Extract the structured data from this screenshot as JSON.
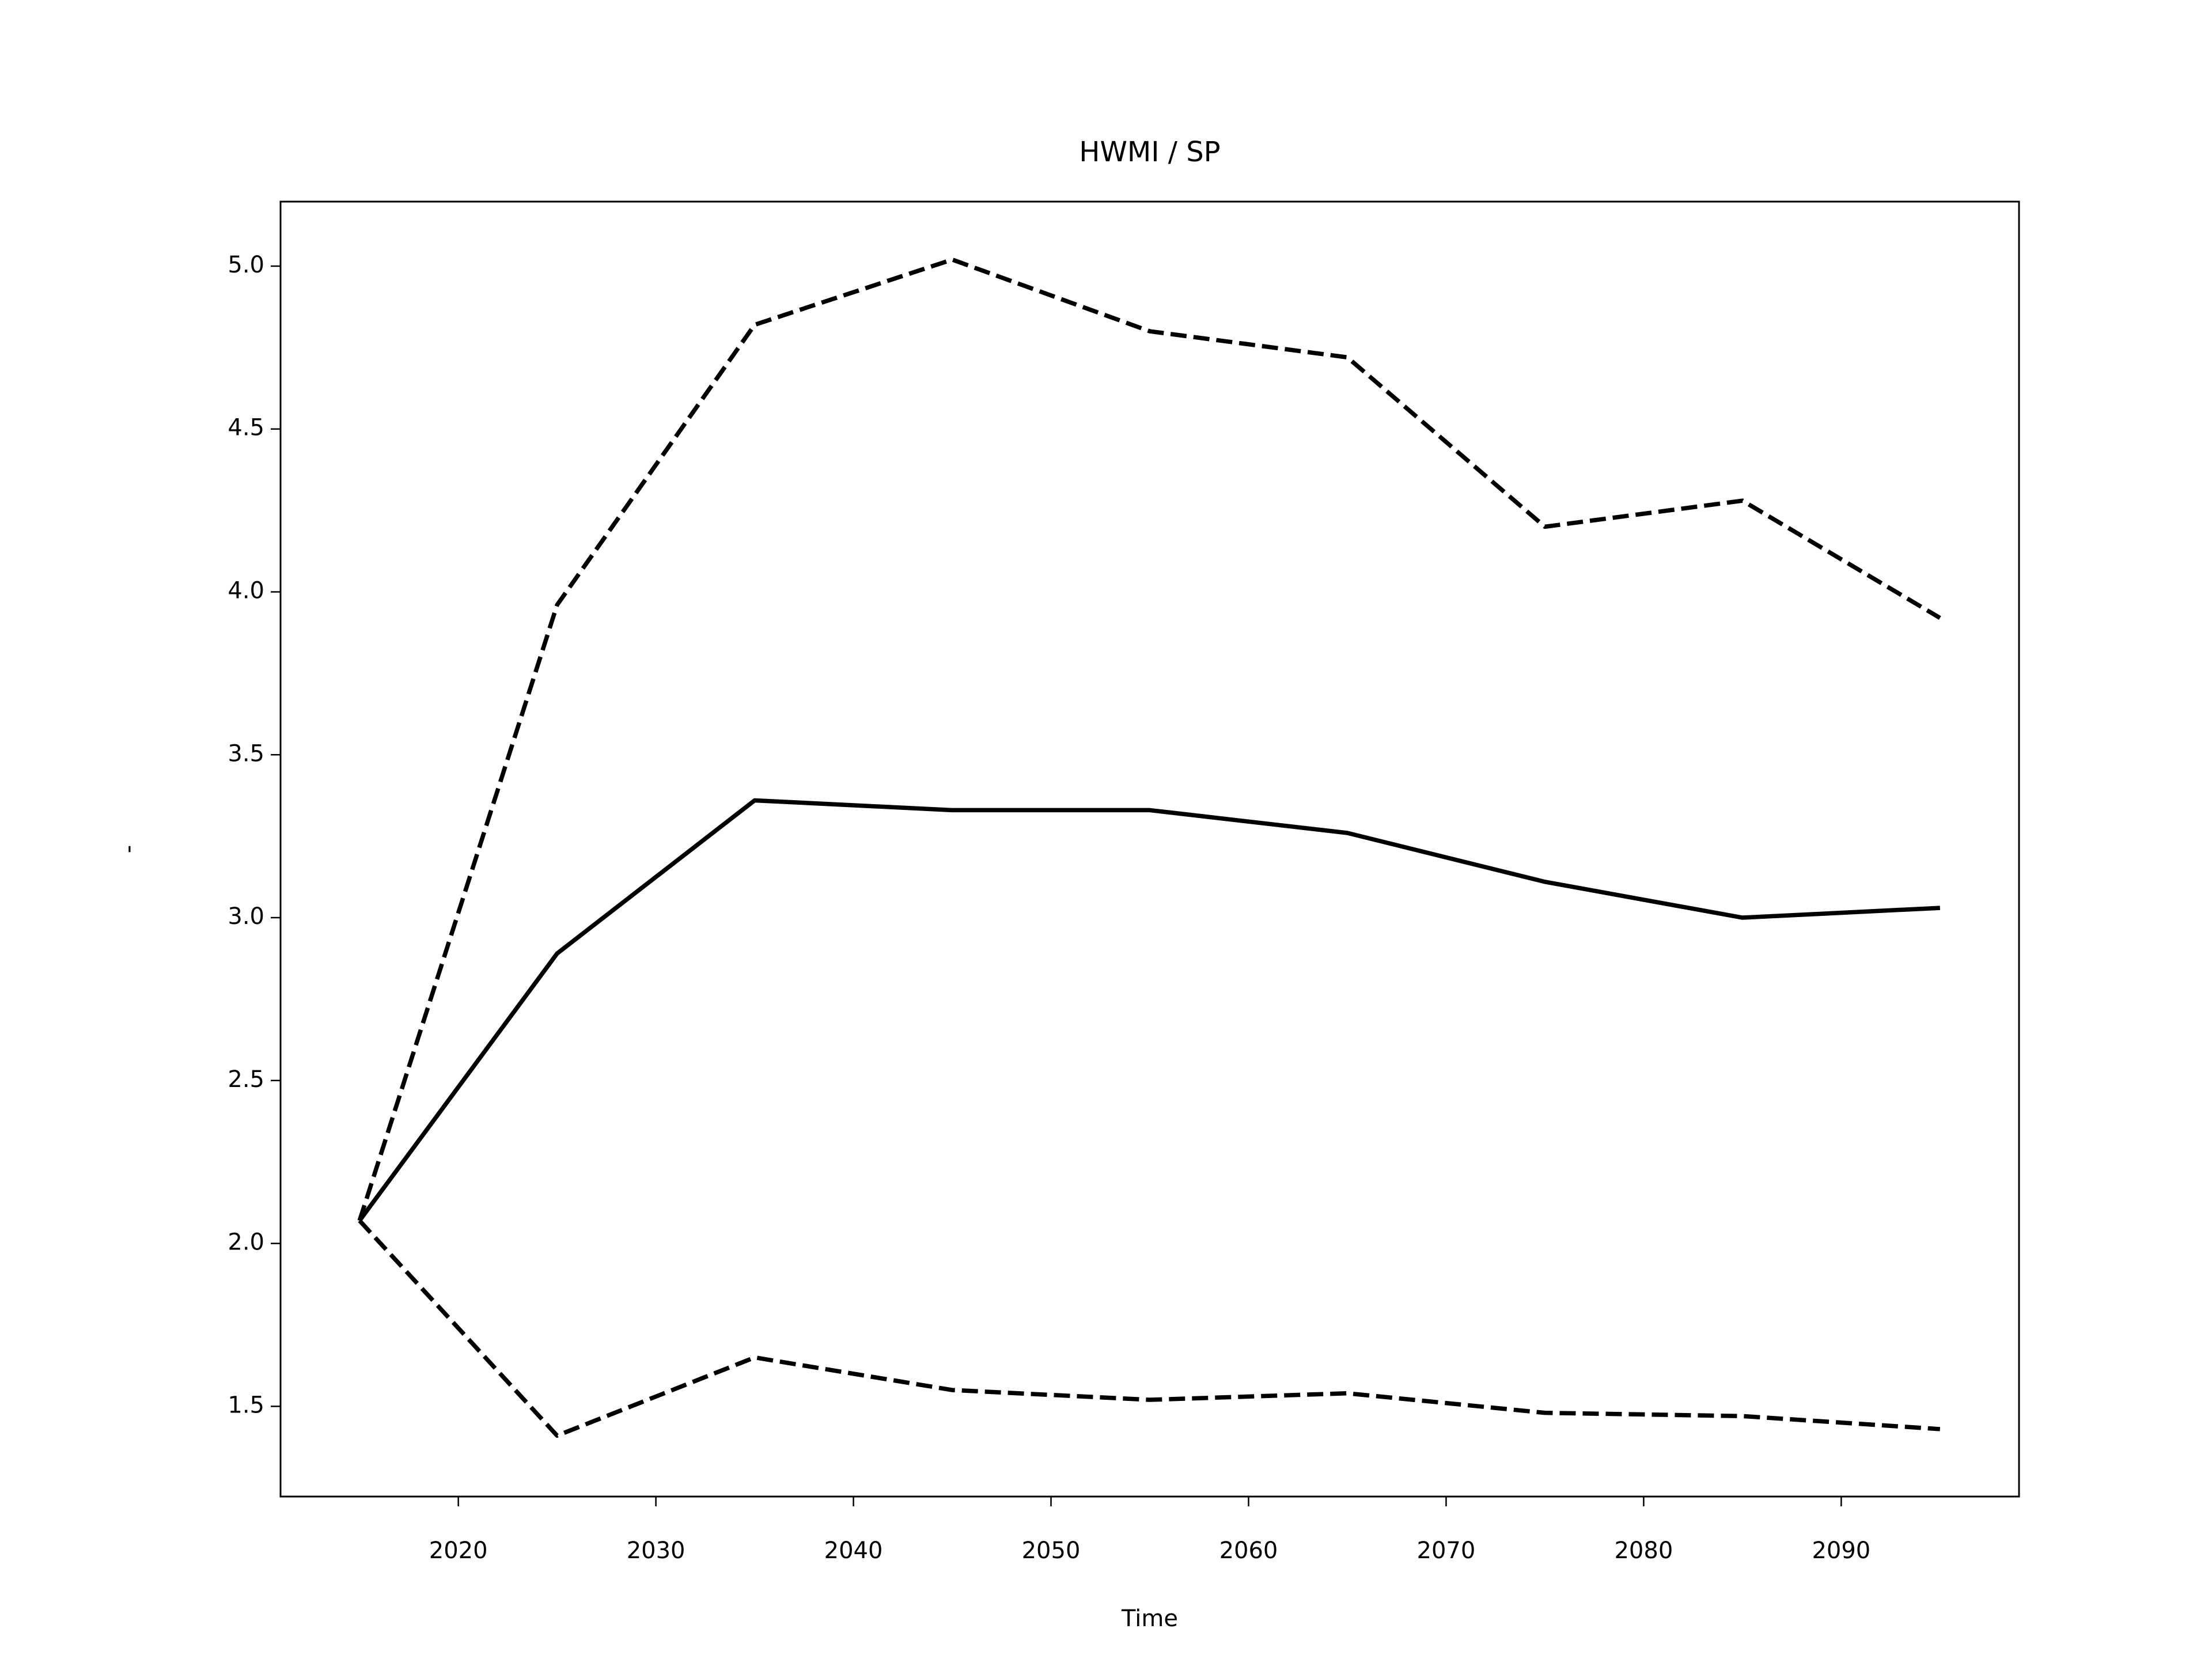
{
  "chart_data": {
    "type": "line",
    "title": "HWMI / SP",
    "x_label": "Time",
    "y_label": "-",
    "x": [
      2015,
      2025,
      2035,
      2045,
      2055,
      2065,
      2075,
      2085,
      2095
    ],
    "series": [
      {
        "color": "#000000",
        "linestyle": "solid",
        "values": [
          2.07,
          2.89,
          3.36,
          3.33,
          3.33,
          3.26,
          3.11,
          3.0,
          3.03
        ]
      },
      {
        "color": "#000000",
        "linestyle": "dashed",
        "values": [
          2.07,
          3.96,
          4.82,
          5.02,
          4.8,
          4.72,
          4.2,
          4.28,
          3.92
        ]
      },
      {
        "color": "#000000",
        "linestyle": "dashed",
        "values": [
          2.07,
          1.41,
          1.65,
          1.55,
          1.52,
          1.54,
          1.48,
          1.47,
          1.43
        ]
      }
    ],
    "xlim": [
      2011,
      2099
    ],
    "xticks": [
      2020,
      2030,
      2040,
      2050,
      2060,
      2070,
      2080,
      2090
    ],
    "ylim": [
      1.223,
      5.198
    ],
    "yticks": [
      1.5,
      {
        "value": 2,
        "label": "2.0"
      },
      2.5,
      {
        "value": 3,
        "label": "3.0"
      },
      3.5,
      {
        "value": 4,
        "label": "4.0"
      },
      4.5,
      {
        "value": 5,
        "label": "5.0"
      }
    ],
    "grid": false
  }
}
